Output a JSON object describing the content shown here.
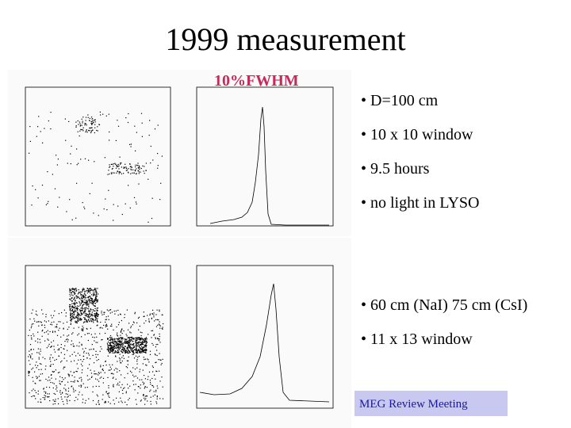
{
  "title": "1999 measurement",
  "annotation": "10%FWHM",
  "bullets_top": [
    "• D=100 cm",
    "• 10 x 10 window",
    "• 9.5 hours",
    "• no light in LYSO"
  ],
  "bullets_bottom": [
    "• 60 cm (NaI) 75 cm (CsI)",
    "• 11 x 13 window"
  ],
  "footer": "MEG Review Meeting"
}
